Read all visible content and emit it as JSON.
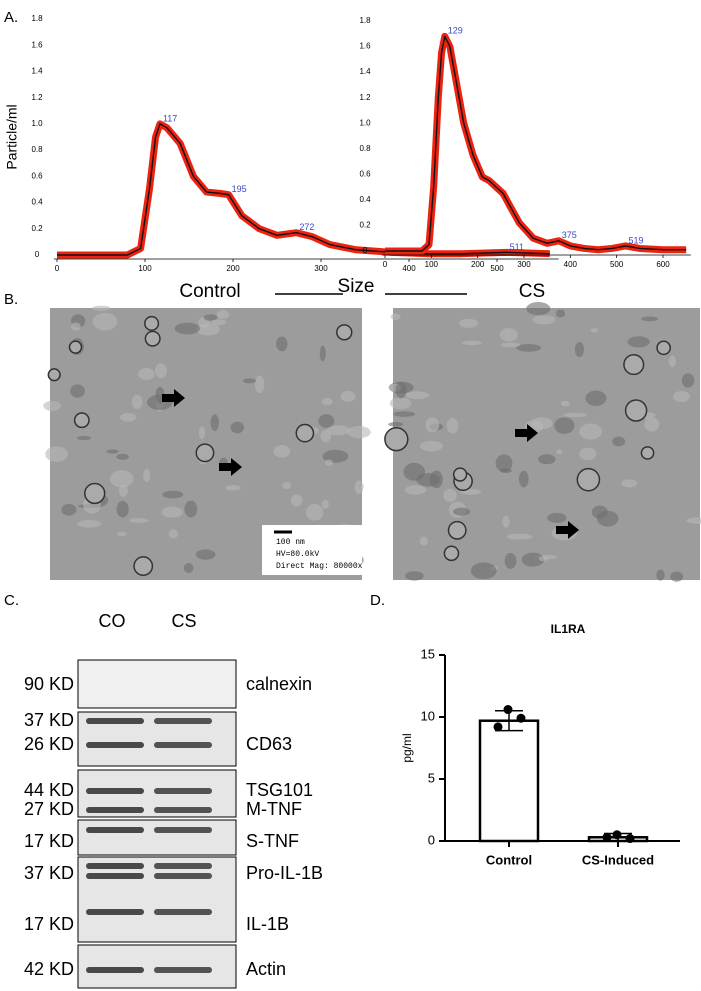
{
  "panels": [
    "A.",
    "B.",
    "C.",
    "D."
  ],
  "shared_x_label": "Size",
  "chart_data": [
    {
      "type": "line",
      "caption": "Control",
      "y_label": "Particle/ml",
      "x": [
        0,
        80,
        95,
        105,
        112,
        117,
        125,
        140,
        155,
        170,
        185,
        195,
        210,
        230,
        250,
        272,
        290,
        310,
        340,
        380,
        420,
        460,
        511,
        560
      ],
      "series": [
        {
          "color": "#111111",
          "band_color": "#ee2211",
          "values": [
            0,
            0,
            0.05,
            0.5,
            0.9,
            1.0,
            0.97,
            0.85,
            0.6,
            0.48,
            0.47,
            0.46,
            0.3,
            0.2,
            0.15,
            0.17,
            0.14,
            0.08,
            0.04,
            0.02,
            0.01,
            0.01,
            0.02,
            0.01
          ]
        }
      ],
      "annotations": [
        {
          "text": "117",
          "x": 117,
          "y": 1.0
        },
        {
          "text": "195",
          "x": 195,
          "y": 0.46
        },
        {
          "text": "272",
          "x": 272,
          "y": 0.17
        },
        {
          "text": "511",
          "x": 511,
          "y": 0.02
        }
      ],
      "xlim": [
        0,
        570
      ],
      "ylim": [
        0,
        1.8
      ],
      "xticks": [
        0,
        100,
        200,
        300,
        400,
        500
      ],
      "yticks": [
        0,
        0.2,
        0.4,
        0.6,
        0.8,
        {
          "value": 1,
          "label": "1.0"
        },
        1.2,
        1.4,
        1.6,
        1.8
      ]
    },
    {
      "type": "line",
      "caption": "CS",
      "x": [
        0,
        80,
        95,
        105,
        115,
        122,
        129,
        140,
        155,
        170,
        190,
        210,
        225,
        240,
        255,
        270,
        290,
        320,
        350,
        375,
        400,
        430,
        460,
        490,
        519,
        550,
        600,
        650
      ],
      "series": [
        {
          "color": "#111111",
          "band_color": "#ee2211",
          "values": [
            0,
            0,
            0.05,
            0.5,
            1.2,
            1.55,
            1.68,
            1.6,
            1.3,
            1.0,
            0.75,
            0.58,
            0.55,
            0.5,
            0.45,
            0.35,
            0.22,
            0.1,
            0.06,
            0.08,
            0.04,
            0.02,
            0.01,
            0.02,
            0.04,
            0.02,
            0.01,
            0.01
          ]
        }
      ],
      "annotations": [
        {
          "text": "129",
          "x": 129,
          "y": 1.68
        },
        {
          "text": "375",
          "x": 375,
          "y": 0.08
        },
        {
          "text": "519",
          "x": 519,
          "y": 0.04
        }
      ],
      "xlim": [
        0,
        660
      ],
      "ylim": [
        0,
        1.8
      ],
      "xticks": [
        0,
        100,
        200,
        300,
        400,
        500,
        600
      ],
      "yticks": [
        0,
        0.2,
        0.4,
        0.6,
        0.8,
        {
          "value": 1,
          "label": "1.0"
        },
        1.2,
        1.4,
        1.6,
        1.8
      ]
    },
    {
      "type": "bar",
      "title": "IL1RA",
      "y_label": "pg/ml",
      "categories": [
        "Control",
        "CS-Induced"
      ],
      "values": [
        9.7,
        0.3
      ],
      "errors": [
        0.8,
        0.3
      ],
      "points": [
        [
          10.6,
          9.9,
          9.2
        ],
        [
          0.5,
          0.2,
          0.3
        ]
      ],
      "color": "#ffffff",
      "ylim": [
        0,
        15
      ],
      "yticks": [
        0,
        5,
        10,
        15
      ]
    }
  ],
  "tem": {
    "scale_bar": "100 nm",
    "voltage": "HV=80.0kV",
    "magnification": "Direct Mag: 80000x"
  },
  "western_blot": {
    "lanes": [
      "CO",
      "CS"
    ],
    "rows": [
      {
        "kd": [
          "90 KD"
        ],
        "proteins": [
          "calnexin"
        ]
      },
      {
        "kd": [
          "37 KD",
          "26 KD"
        ],
        "proteins": [
          "CD63"
        ]
      },
      {
        "kd": [
          "44 KD"
        ],
        "proteins": [
          "TSG101"
        ]
      },
      {
        "kd": [
          "27 KD",
          "17 KD"
        ],
        "proteins": [
          "M-TNF",
          "S-TNF"
        ]
      },
      {
        "kd": [
          "37 KD",
          "17 KD"
        ],
        "proteins": [
          "Pro-IL-1B",
          "IL-1B"
        ]
      },
      {
        "kd": [
          "42 KD"
        ],
        "proteins": [
          "Actin"
        ]
      }
    ]
  }
}
